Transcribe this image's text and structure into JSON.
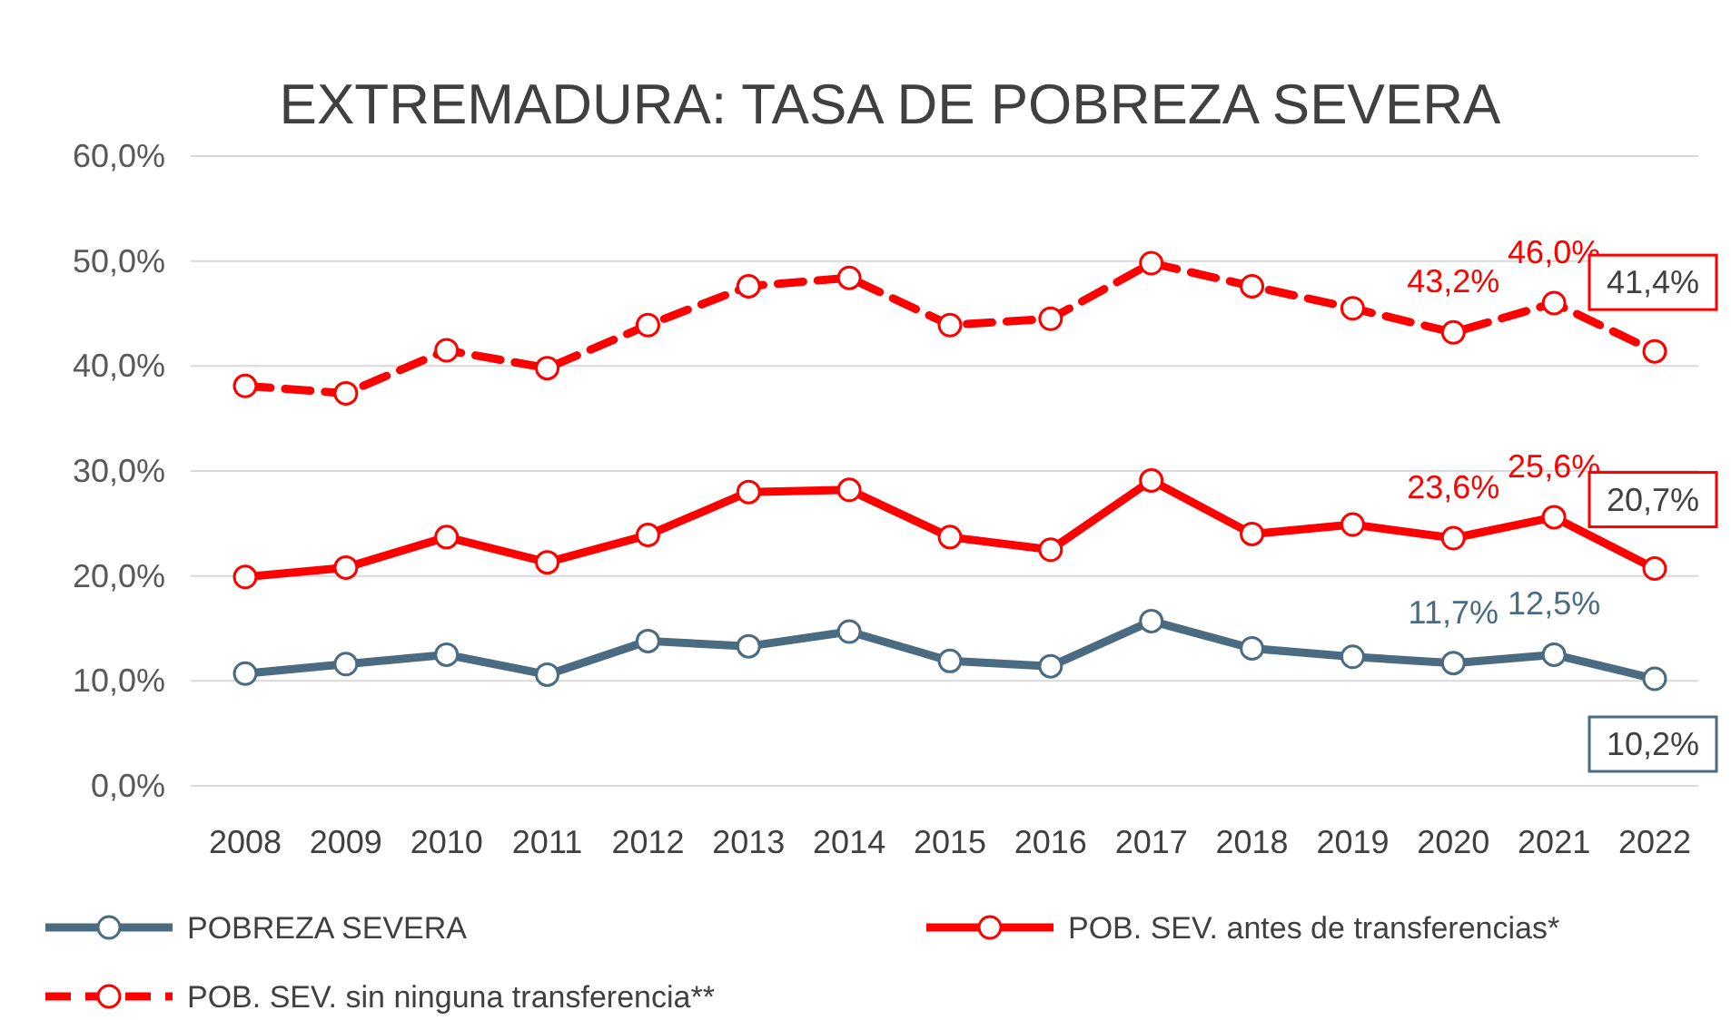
{
  "chart_data": {
    "type": "line",
    "title": "EXTREMADURA: TASA DE POBREZA SEVERA",
    "categories": [
      "2008",
      "2009",
      "2010",
      "2011",
      "2012",
      "2013",
      "2014",
      "2015",
      "2016",
      "2017",
      "2018",
      "2019",
      "2020",
      "2021",
      "2022"
    ],
    "ylim": [
      0,
      60
    ],
    "yticks": [
      {
        "value": 0,
        "label": "0,0%"
      },
      {
        "value": 10,
        "label": "10,0%"
      },
      {
        "value": 20,
        "label": "20,0%"
      },
      {
        "value": 30,
        "label": "30,0%"
      },
      {
        "value": 40,
        "label": "40,0%"
      },
      {
        "value": 50,
        "label": "50,0%"
      },
      {
        "value": 60,
        "label": "60,0%"
      }
    ],
    "grid": "y",
    "legend": "bottom",
    "marker": "circle",
    "series": [
      {
        "name": "POBREZA SEVERA",
        "color": "#4a6b82",
        "line_style": "solid",
        "values": [
          10.7,
          11.6,
          12.5,
          10.6,
          13.8,
          13.3,
          14.7,
          11.9,
          11.4,
          15.7,
          13.1,
          12.3,
          11.7,
          12.5,
          10.2
        ],
        "value_labels": [
          null,
          null,
          null,
          null,
          null,
          null,
          null,
          null,
          null,
          null,
          null,
          null,
          "11,7%",
          "12,5%",
          "10,2%"
        ]
      },
      {
        "name": "POB. SEV. antes de transferencias*",
        "color": "#ff0000",
        "line_style": "solid",
        "values": [
          19.9,
          20.8,
          23.7,
          21.3,
          23.9,
          28.0,
          28.2,
          23.7,
          22.5,
          29.1,
          24.0,
          24.9,
          23.6,
          25.6,
          20.7
        ],
        "value_labels": [
          null,
          null,
          null,
          null,
          null,
          null,
          null,
          null,
          null,
          null,
          null,
          null,
          "23,6%",
          "25,6%",
          "20,7%"
        ]
      },
      {
        "name": "POB. SEV. sin ninguna transferencia**",
        "color": "#ff0000",
        "line_style": "dashed",
        "values": [
          38.1,
          37.4,
          41.5,
          39.8,
          43.9,
          47.6,
          48.4,
          43.9,
          44.5,
          49.8,
          47.6,
          45.5,
          43.2,
          46.0,
          41.4
        ],
        "value_labels": [
          null,
          null,
          null,
          null,
          null,
          null,
          null,
          null,
          null,
          null,
          null,
          null,
          "43,2%",
          "46,0%",
          "41,4%"
        ]
      }
    ]
  }
}
